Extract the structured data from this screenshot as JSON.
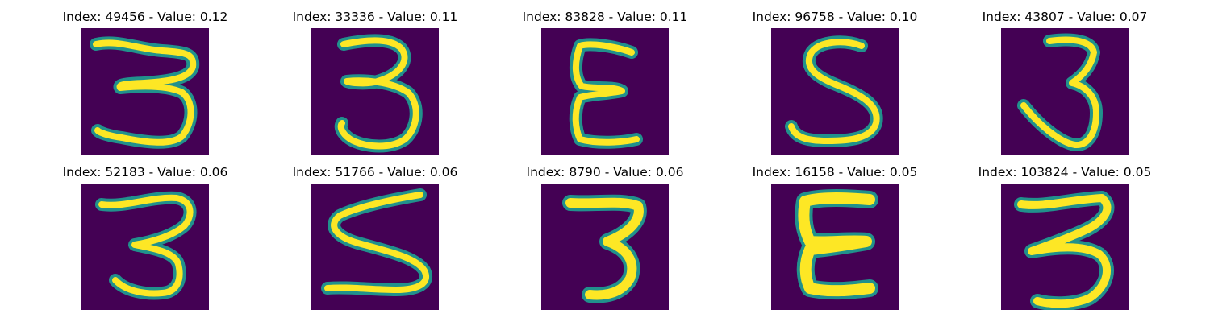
{
  "figure": {
    "colors": {
      "background": "#440154",
      "stroke_core": "#fde725",
      "stroke_edge": "#21918c"
    },
    "panels": [
      {
        "title": "Index: 49456 - Value: 0.12",
        "index": 49456,
        "value": 0.12,
        "digit": "3"
      },
      {
        "title": "Index: 33336 - Value: 0.11",
        "index": 33336,
        "value": 0.11,
        "digit": "3"
      },
      {
        "title": "Index: 83828 - Value: 0.11",
        "index": 83828,
        "value": 0.11,
        "digit": "E"
      },
      {
        "title": "Index: 96758 - Value: 0.10",
        "index": 96758,
        "value": 0.1,
        "digit": "5"
      },
      {
        "title": "Index: 43807 - Value: 0.07",
        "index": 43807,
        "value": 0.07,
        "digit": "3"
      },
      {
        "title": "Index: 52183 - Value: 0.06",
        "index": 52183,
        "value": 0.06,
        "digit": "3"
      },
      {
        "title": "Index: 51766 - Value: 0.06",
        "index": 51766,
        "value": 0.06,
        "digit": "5"
      },
      {
        "title": "Index: 8790 - Value: 0.06",
        "index": 8790,
        "value": 0.06,
        "digit": "3"
      },
      {
        "title": "Index: 16158 - Value: 0.05",
        "index": 16158,
        "value": 0.05,
        "digit": "E"
      },
      {
        "title": "Index: 103824 - Value: 0.05",
        "index": 103824,
        "value": 0.05,
        "digit": "3"
      }
    ]
  }
}
